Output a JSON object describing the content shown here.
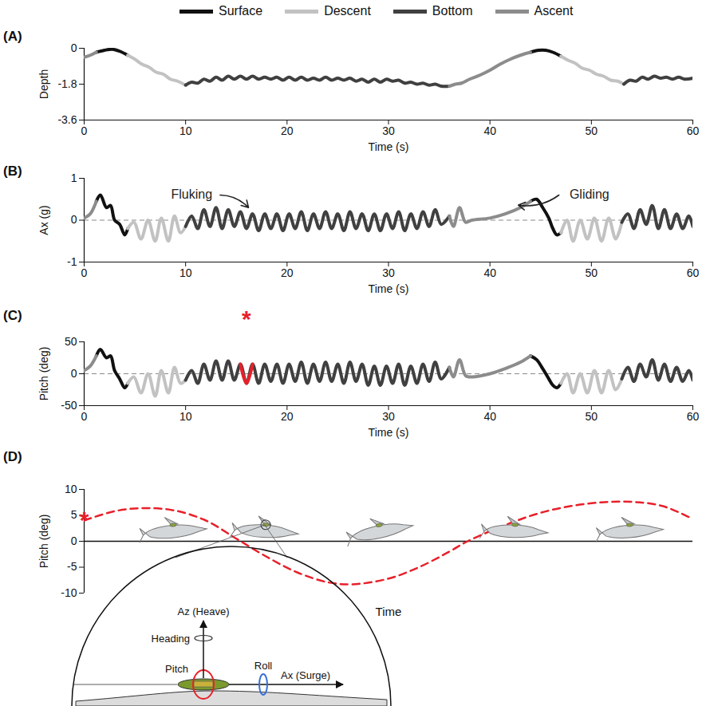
{
  "chart_data": [
    {
      "type": "line",
      "panel": "(A)",
      "legend": "top",
      "xlabel": "Time (s)",
      "ylabel": "Depth",
      "xlim": [
        0,
        60
      ],
      "xticks": [
        0,
        10,
        20,
        30,
        40,
        50,
        60
      ],
      "ylim": [
        -3.6,
        0
      ],
      "yticks": [
        -3.6,
        -1.8,
        0
      ],
      "series": [
        {
          "name": "Surface",
          "color": "#111111",
          "x": [
            1.2,
            2,
            2.8,
            3.5,
            4.3,
            null,
            44,
            44.8,
            45.5,
            46.2,
            47
          ],
          "values": [
            -0.2,
            -0.1,
            -0.05,
            -0.15,
            -0.35,
            null,
            -0.2,
            -0.1,
            -0.1,
            -0.2,
            -0.4
          ]
        },
        {
          "name": "Descent",
          "color": "#c2c2c2",
          "x": [
            4.3,
            5,
            5.7,
            6.4,
            7.1,
            7.8,
            8.5,
            9.2,
            10,
            null,
            47,
            47.7,
            48.4,
            49.1,
            49.8,
            50.5,
            51.2,
            51.9,
            52.6,
            53.2
          ],
          "values": [
            -0.35,
            -0.55,
            -0.8,
            -0.95,
            -1.2,
            -1.3,
            -1.55,
            -1.65,
            -1.85,
            null,
            -0.4,
            -0.6,
            -0.75,
            -1.0,
            -1.1,
            -1.3,
            -1.4,
            -1.6,
            -1.65,
            -1.8
          ]
        },
        {
          "name": "Bottom",
          "color": "#404040",
          "x": [
            10.0,
            10.6,
            11.2,
            11.8,
            12.4,
            13.0,
            13.6,
            14.2,
            14.8,
            15.4,
            16.0,
            16.6,
            17.2,
            17.8,
            18.4,
            19.0,
            19.6,
            20.2,
            20.8,
            21.4,
            22.0,
            22.6,
            23.2,
            23.8,
            24.4,
            25.0,
            25.6,
            26.2,
            26.8,
            27.4,
            28.0,
            28.6,
            29.2,
            29.8,
            30.4,
            31.0,
            31.6,
            32.2,
            32.8,
            33.4,
            34.0,
            34.6,
            35.2,
            36.0,
            null,
            53.2,
            53.8,
            54.4,
            55.0,
            55.6,
            56.2,
            56.8,
            57.4,
            58.0,
            58.6,
            59.2,
            60
          ],
          "values": [
            -1.85,
            -1.7,
            -1.75,
            -1.55,
            -1.65,
            -1.45,
            -1.6,
            -1.4,
            -1.55,
            -1.4,
            -1.55,
            -1.4,
            -1.55,
            -1.45,
            -1.55,
            -1.45,
            -1.6,
            -1.45,
            -1.6,
            -1.45,
            -1.6,
            -1.5,
            -1.6,
            -1.45,
            -1.6,
            -1.5,
            -1.6,
            -1.5,
            -1.65,
            -1.55,
            -1.7,
            -1.55,
            -1.7,
            -1.55,
            -1.65,
            -1.6,
            -1.75,
            -1.7,
            -1.8,
            -1.75,
            -1.85,
            -1.8,
            -1.9,
            -1.9,
            null,
            -1.8,
            -1.6,
            -1.65,
            -1.45,
            -1.55,
            -1.4,
            -1.5,
            -1.45,
            -1.55,
            -1.45,
            -1.55,
            -1.5
          ]
        },
        {
          "name": "Ascent",
          "color": "#8c8c8c",
          "x": [
            0,
            0.6,
            1.2,
            null,
            36,
            36.6,
            37.2,
            38,
            39,
            40,
            41,
            42,
            43,
            44
          ],
          "values": [
            -0.45,
            -0.35,
            -0.2,
            null,
            -1.9,
            -1.8,
            -1.75,
            -1.55,
            -1.35,
            -1.1,
            -0.8,
            -0.55,
            -0.35,
            -0.2
          ]
        }
      ]
    },
    {
      "type": "line",
      "panel": "(B)",
      "xlabel": "Time (s)",
      "ylabel": "Ax (g)",
      "xlim": [
        0,
        60
      ],
      "xticks": [
        0,
        10,
        20,
        30,
        40,
        50,
        60
      ],
      "ylim": [
        -1,
        1
      ],
      "yticks": [
        -1,
        0,
        1
      ],
      "baseline": {
        "value": 0,
        "line_style": "dashed"
      },
      "annotations": [
        {
          "text": "Fluking",
          "x": 10.6,
          "y": 0.62,
          "arrow": [
            [
              13.4,
              0.6
            ],
            [
              16.2,
              0.3
            ]
          ]
        },
        {
          "text": "Gliding",
          "x": 49.8,
          "y": 0.62,
          "arrow": [
            [
              46.8,
              0.6
            ],
            [
              42.8,
              0.36
            ]
          ]
        }
      ],
      "series": [
        {
          "name": "Surface",
          "color": "#111111",
          "x": [
            1.2,
            1.6,
            2.2,
            2.6,
            3.0,
            3.5,
            4.0,
            4.3,
            null,
            44.0,
            44.6,
            45.2,
            45.8,
            46.2,
            46.6,
            47.0
          ],
          "values": [
            0.45,
            0.6,
            0.3,
            0.35,
            0.0,
            -0.1,
            -0.35,
            -0.2,
            null,
            0.45,
            0.5,
            0.3,
            0.05,
            -0.2,
            -0.35,
            -0.3
          ]
        },
        {
          "name": "Descent",
          "color": "#c2c2c2",
          "x": [
            4.3,
            4.9,
            5.6,
            6.3,
            7.0,
            7.6,
            8.3,
            8.9,
            9.5,
            10.0,
            null,
            47.0,
            47.6,
            48.2,
            48.9,
            49.6,
            50.3,
            51.0,
            51.7,
            52.4,
            53.0
          ],
          "values": [
            -0.2,
            -0.05,
            -0.45,
            0.0,
            -0.5,
            0.05,
            -0.5,
            0.1,
            -0.3,
            -0.15,
            null,
            -0.3,
            0.0,
            -0.5,
            0.0,
            -0.45,
            0.05,
            -0.5,
            0.05,
            -0.45,
            -0.05
          ]
        },
        {
          "name": "Bottom",
          "color": "#404040",
          "x": [
            10.0,
            10.6,
            11.2,
            11.8,
            12.4,
            13.0,
            13.6,
            14.2,
            14.8,
            15.4,
            16.0,
            16.6,
            17.2,
            17.8,
            18.4,
            19.0,
            19.6,
            20.2,
            20.8,
            21.4,
            22.0,
            22.6,
            23.2,
            23.8,
            24.4,
            25.0,
            25.6,
            26.2,
            26.8,
            27.4,
            28.0,
            28.6,
            29.2,
            29.8,
            30.4,
            31.0,
            31.6,
            32.2,
            32.8,
            33.4,
            34.0,
            34.6,
            35.2,
            36.0,
            null,
            53.0,
            53.6,
            54.2,
            54.8,
            55.4,
            56.0,
            56.6,
            57.2,
            57.8,
            58.4,
            59.0,
            59.6,
            60.0
          ],
          "values": [
            -0.15,
            0.1,
            -0.2,
            0.25,
            -0.15,
            0.3,
            -0.2,
            0.25,
            -0.15,
            0.2,
            -0.2,
            0.15,
            -0.25,
            0.15,
            -0.2,
            0.15,
            -0.25,
            0.15,
            -0.2,
            0.2,
            -0.25,
            0.15,
            -0.2,
            0.2,
            -0.2,
            0.15,
            -0.25,
            0.2,
            -0.2,
            0.15,
            -0.25,
            0.15,
            -0.25,
            0.15,
            -0.2,
            0.2,
            -0.25,
            0.15,
            -0.2,
            0.2,
            -0.15,
            0.25,
            -0.1,
            0.1,
            null,
            -0.05,
            0.15,
            -0.2,
            0.25,
            -0.1,
            0.35,
            -0.2,
            0.25,
            -0.2,
            0.15,
            -0.2,
            0.1,
            -0.15
          ]
        },
        {
          "name": "Ascent",
          "color": "#8c8c8c",
          "x": [
            0,
            0.6,
            1.2,
            null,
            36.0,
            36.4,
            37.0,
            37.6,
            38.2,
            40,
            41.5,
            43,
            44
          ],
          "values": [
            0.05,
            0.15,
            0.45,
            null,
            0.1,
            -0.15,
            0.3,
            -0.05,
            0.0,
            0.05,
            0.15,
            0.3,
            0.45
          ]
        }
      ]
    },
    {
      "type": "line",
      "panel": "(C)",
      "xlabel": "Time (s)",
      "ylabel": "Pitch (deg)",
      "xlim": [
        0,
        60
      ],
      "xticks": [
        0,
        10,
        20,
        30,
        40,
        50,
        60
      ],
      "ylim": [
        -50,
        50
      ],
      "yticks": [
        -50,
        0,
        50
      ],
      "baseline": {
        "value": 0,
        "line_style": "dashed"
      },
      "annotations": [
        {
          "text": "*",
          "x": 16.0,
          "y": 85,
          "color": "#e8202a"
        }
      ],
      "highlight": {
        "color": "#e8202a",
        "x": [
          15.4,
          16.0,
          16.6
        ],
        "values": [
          15,
          -15,
          15
        ]
      },
      "series": [
        {
          "name": "Surface",
          "color": "#111111",
          "x": [
            1.2,
            1.6,
            2.2,
            2.6,
            3.0,
            3.5,
            4.0,
            4.3,
            null,
            44.0,
            44.6,
            45.2,
            45.8,
            46.2,
            46.6,
            47.0
          ],
          "values": [
            28,
            38,
            25,
            28,
            5,
            -8,
            -22,
            -15,
            null,
            28,
            22,
            8,
            -8,
            -18,
            -22,
            -15
          ]
        },
        {
          "name": "Descent",
          "color": "#c2c2c2",
          "x": [
            4.3,
            4.9,
            5.6,
            6.3,
            7.0,
            7.6,
            8.3,
            8.9,
            9.5,
            10.0,
            null,
            47.0,
            47.6,
            48.2,
            48.9,
            49.6,
            50.3,
            51.0,
            51.7,
            52.4,
            53.0
          ],
          "values": [
            -15,
            -5,
            -30,
            0,
            -35,
            5,
            -30,
            10,
            -15,
            -10,
            null,
            -15,
            0,
            -30,
            0,
            -30,
            5,
            -30,
            5,
            -25,
            -8
          ]
        },
        {
          "name": "Bottom",
          "color": "#404040",
          "x": [
            10.0,
            10.6,
            11.2,
            11.8,
            12.4,
            13.0,
            13.6,
            14.2,
            14.8,
            15.4,
            16.0,
            16.6,
            17.2,
            17.8,
            18.4,
            19.0,
            19.6,
            20.2,
            20.8,
            21.4,
            22.0,
            22.6,
            23.2,
            23.8,
            24.4,
            25.0,
            25.6,
            26.2,
            26.8,
            27.4,
            28.0,
            28.6,
            29.2,
            29.8,
            30.4,
            31.0,
            31.6,
            32.2,
            32.8,
            33.4,
            34.0,
            34.6,
            35.2,
            36.0,
            null,
            53.0,
            53.6,
            54.2,
            54.8,
            55.4,
            56.0,
            56.6,
            57.2,
            57.8,
            58.4,
            59.0,
            59.6,
            60.0
          ],
          "values": [
            -10,
            5,
            -15,
            15,
            -10,
            20,
            -10,
            20,
            -10,
            15,
            -15,
            15,
            -15,
            15,
            -12,
            15,
            -15,
            15,
            -12,
            18,
            -15,
            15,
            -12,
            18,
            -12,
            15,
            -15,
            18,
            -12,
            15,
            -18,
            12,
            -18,
            12,
            -15,
            15,
            -18,
            12,
            -15,
            15,
            -12,
            18,
            -8,
            10,
            null,
            -8,
            10,
            -12,
            15,
            -5,
            22,
            -10,
            15,
            -12,
            10,
            -12,
            5,
            -10
          ]
        },
        {
          "name": "Ascent",
          "color": "#8c8c8c",
          "x": [
            0,
            0.6,
            1.2,
            null,
            36.0,
            36.4,
            37.0,
            37.6,
            38.2,
            40,
            41.5,
            43,
            44
          ],
          "values": [
            5,
            12,
            28,
            null,
            10,
            -5,
            22,
            -3,
            -5,
            0,
            8,
            18,
            28
          ]
        }
      ]
    },
    {
      "type": "line",
      "panel": "(D)",
      "xlabel": "Time",
      "ylabel": "Pitch (deg)",
      "tick_labels": "y",
      "xlim": [
        0,
        100
      ],
      "ylim": [
        -10,
        10
      ],
      "yticks": [
        -10,
        -5,
        0,
        5,
        10
      ],
      "baseline": {
        "value": 0,
        "line_style": "solid"
      },
      "annotations": [
        {
          "text": "*",
          "x": 0,
          "y": 4,
          "color": "#e8202a"
        }
      ],
      "series": [
        {
          "color": "#e8202a",
          "line_style": "dashed",
          "x": [
            0,
            5,
            10,
            15,
            20,
            25,
            30,
            35,
            40,
            44,
            50,
            55,
            60,
            63,
            70,
            75,
            80,
            85,
            90,
            95,
            100
          ],
          "values": [
            4,
            5.8,
            6.4,
            5.9,
            4,
            0.5,
            -3,
            -6,
            -7.9,
            -8.3,
            -7.2,
            -5,
            -2,
            0,
            3.5,
            5.5,
            6.8,
            7.5,
            7.6,
            6.8,
            4.3
          ]
        }
      ],
      "inset": {
        "heave": "Az (Heave)",
        "heading": "Heading",
        "pitch": "Pitch",
        "roll": "Roll",
        "surge": "Ax (Surge)"
      }
    }
  ]
}
